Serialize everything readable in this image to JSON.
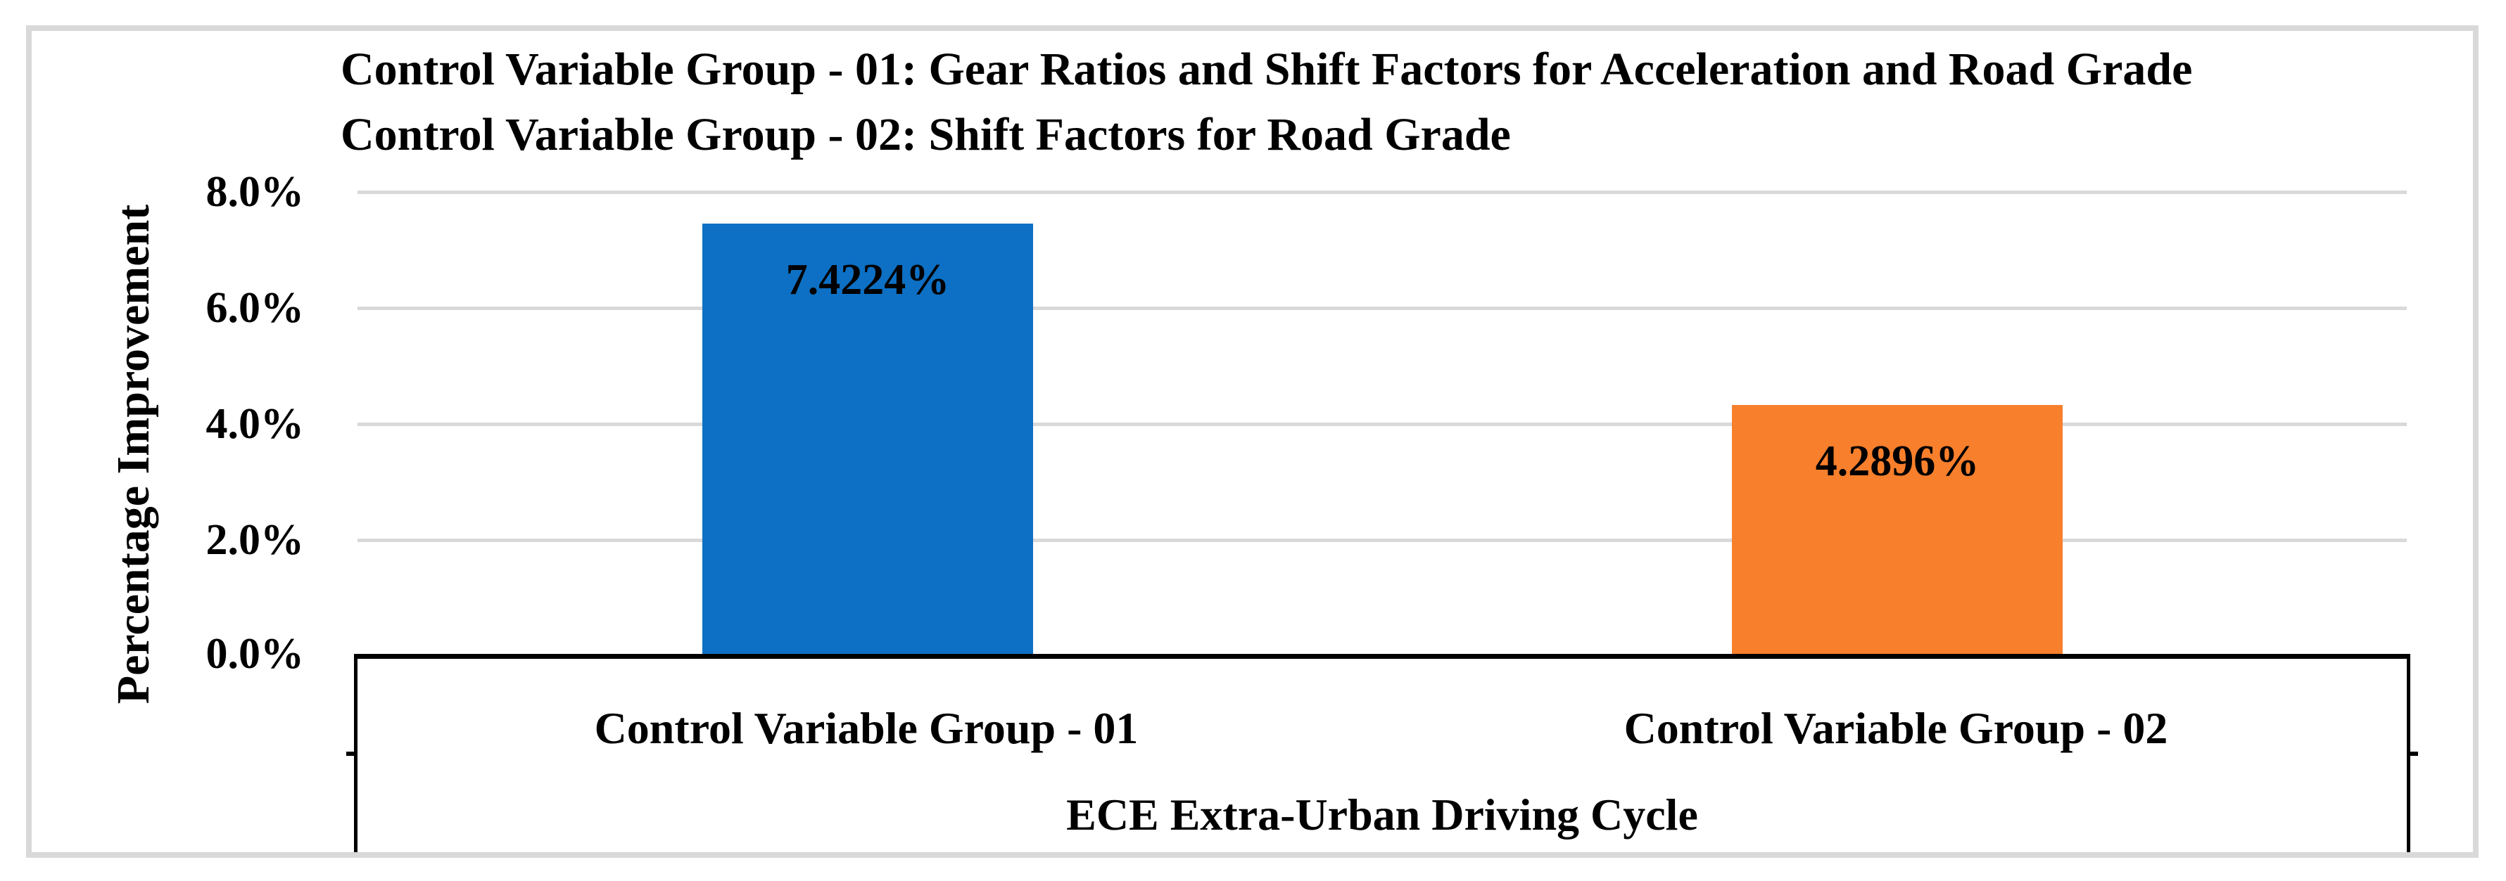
{
  "chart_data": {
    "type": "bar",
    "title_lines": [
      "Control Variable Group - 01: Gear Ratios and Shift Factors for Acceleration and Road Grade",
      "Control Variable Group - 02: Shift Factors for Road Grade"
    ],
    "categories": [
      "Control Variable Group - 01",
      "Control Variable Group - 02"
    ],
    "values": [
      7.4224,
      4.2896
    ],
    "value_labels": [
      "7.4224%",
      "4.2896%"
    ],
    "series_colors": [
      "#0D70C4",
      "#F87F2C"
    ],
    "xlabel": "ECE Extra-Urban Driving Cycle",
    "ylabel": "Percentage Improvement",
    "ylim": [
      0,
      8
    ],
    "ytick_labels": [
      "8.0%",
      "6.0%",
      "4.0%",
      "2.0%",
      "0.0%"
    ],
    "ytick_values": [
      8.0,
      6.0,
      4.0,
      2.0,
      0.0
    ],
    "grid": true,
    "gridline_color": "#D9D9D9",
    "frame_color": "#D9D9D9",
    "axis_color": "#000000",
    "text_color": "#000000",
    "legend_position": "none",
    "label_position": "inside-end"
  }
}
